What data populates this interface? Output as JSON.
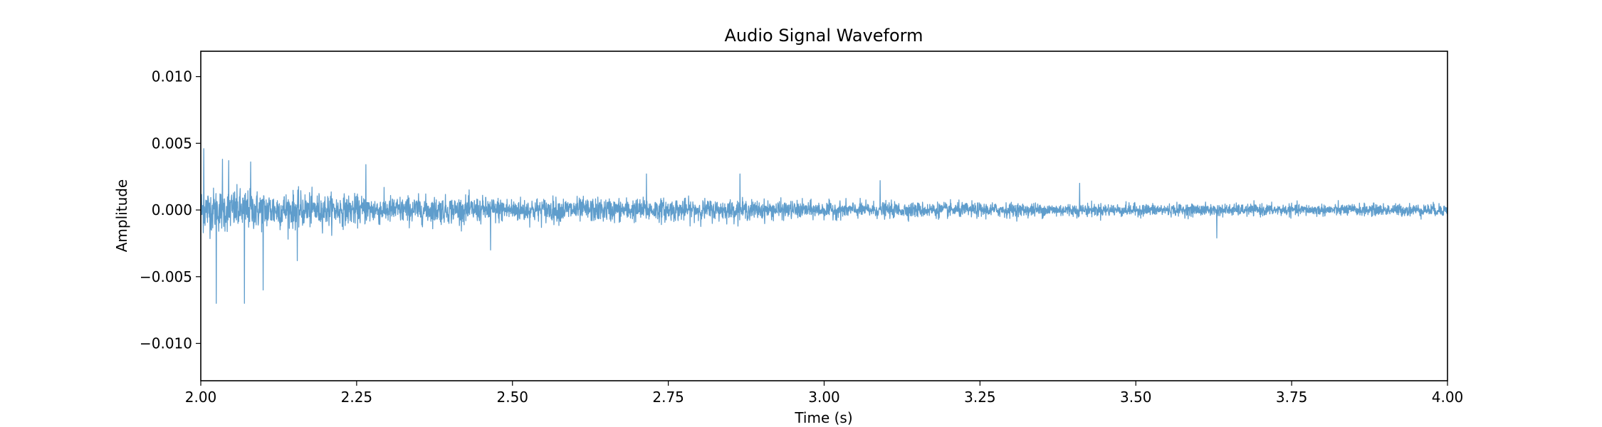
{
  "chart_data": {
    "type": "line",
    "title": "Audio Signal Waveform",
    "xlabel": "Time (s)",
    "ylabel": "Amplitude",
    "xlim": [
      2.0,
      4.0
    ],
    "ylim": [
      -0.0128,
      0.0119
    ],
    "x_ticks": [
      2.0,
      2.25,
      2.5,
      2.75,
      3.0,
      3.25,
      3.5,
      3.75,
      4.0
    ],
    "x_tick_labels": [
      "2.00",
      "2.25",
      "2.50",
      "2.75",
      "3.00",
      "3.25",
      "3.50",
      "3.75",
      "4.00"
    ],
    "y_ticks": [
      -0.01,
      -0.005,
      0.0,
      0.005,
      0.01
    ],
    "y_tick_labels": [
      "−0.010",
      "−0.005",
      "0.000",
      "0.005",
      "0.010"
    ],
    "grid": false,
    "series": [
      {
        "color": "#5f9dcc",
        "x_start": 2.0,
        "x_end": 4.0,
        "samples": 5000,
        "peak_points": [
          {
            "x": 2.005,
            "y": 0.0046
          },
          {
            "x": 2.025,
            "y": -0.007
          },
          {
            "x": 2.035,
            "y": 0.0038
          },
          {
            "x": 2.045,
            "y": 0.0037
          },
          {
            "x": 2.07,
            "y": -0.007
          },
          {
            "x": 2.08,
            "y": 0.0036
          },
          {
            "x": 2.1,
            "y": -0.006
          },
          {
            "x": 2.155,
            "y": -0.0038
          },
          {
            "x": 2.265,
            "y": 0.0034
          },
          {
            "x": 2.465,
            "y": -0.003
          },
          {
            "x": 2.715,
            "y": 0.0027
          },
          {
            "x": 2.865,
            "y": 0.0027
          },
          {
            "x": 3.09,
            "y": 0.0022
          },
          {
            "x": 3.41,
            "y": 0.002
          },
          {
            "x": 3.63,
            "y": -0.0021
          }
        ],
        "envelope": [
          {
            "x": 2.0,
            "amp": 0.0022
          },
          {
            "x": 2.25,
            "amp": 0.0014
          },
          {
            "x": 2.5,
            "amp": 0.0012
          },
          {
            "x": 2.75,
            "amp": 0.0011
          },
          {
            "x": 3.0,
            "amp": 0.0008
          },
          {
            "x": 3.25,
            "amp": 0.0007
          },
          {
            "x": 3.5,
            "amp": 0.0006
          },
          {
            "x": 3.75,
            "amp": 0.00055
          },
          {
            "x": 4.0,
            "amp": 0.0006
          }
        ]
      }
    ]
  }
}
